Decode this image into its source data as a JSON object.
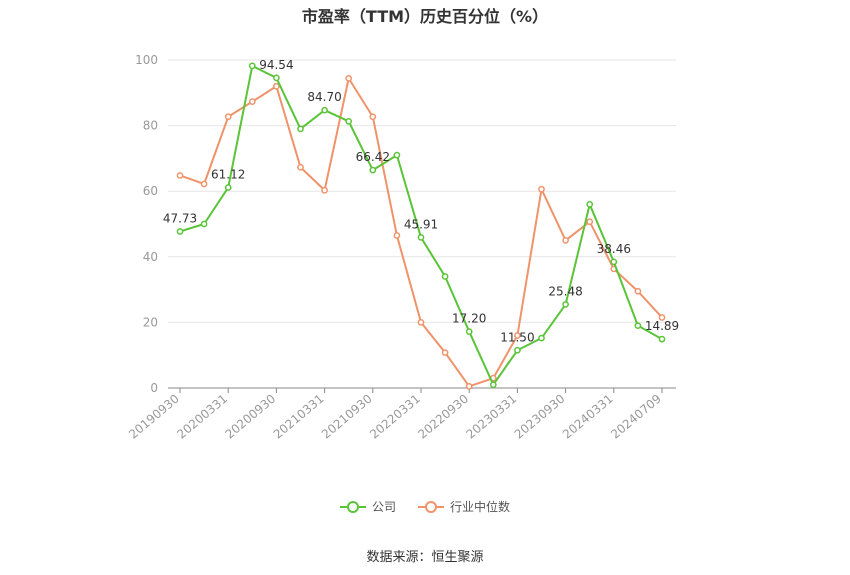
{
  "chart_data": {
    "type": "line",
    "title": "市盈率（TTM）历史百分位（%）",
    "ylim": [
      0,
      100
    ],
    "yticks": [
      0,
      20,
      40,
      60,
      80,
      100
    ],
    "x_tick_labels": [
      "20190930",
      "20200331",
      "20200930",
      "20210331",
      "20210930",
      "20220331",
      "20220930",
      "20230331",
      "20230930",
      "20240331",
      "20240709"
    ],
    "x": [
      "20190930",
      "20191231",
      "20200331",
      "20200630",
      "20200930",
      "20201231",
      "20210331",
      "20210630",
      "20210930",
      "20211231",
      "20220331",
      "20220630",
      "20220930",
      "20221231",
      "20230331",
      "20230630",
      "20230930",
      "20231231",
      "20240331",
      "20240630",
      "20240709"
    ],
    "series": [
      {
        "name": "公司",
        "color": "#5ac438",
        "values": [
          47.73,
          50.0,
          61.12,
          98.2,
          94.54,
          79.0,
          84.7,
          81.3,
          66.42,
          71.0,
          45.91,
          34.0,
          17.2,
          1.0,
          11.5,
          15.2,
          25.48,
          56.0,
          38.46,
          19.0,
          14.89
        ],
        "data_labels": [
          {
            "index": 0,
            "text": "47.73"
          },
          {
            "index": 2,
            "text": "61.12"
          },
          {
            "index": 4,
            "text": "94.54"
          },
          {
            "index": 6,
            "text": "84.70"
          },
          {
            "index": 8,
            "text": "66.42"
          },
          {
            "index": 10,
            "text": "45.91"
          },
          {
            "index": 12,
            "text": "17.20"
          },
          {
            "index": 14,
            "text": "11.50"
          },
          {
            "index": 16,
            "text": "25.48"
          },
          {
            "index": 18,
            "text": "38.46"
          },
          {
            "index": 20,
            "text": "14.89"
          }
        ]
      },
      {
        "name": "行业中位数",
        "color": "#f0926a",
        "values": [
          64.8,
          62.2,
          82.7,
          87.3,
          92.0,
          67.3,
          60.3,
          94.4,
          82.7,
          46.5,
          20.0,
          10.8,
          0.5,
          3.0,
          16.0,
          60.6,
          45.0,
          50.7,
          36.3,
          29.5,
          21.5
        ]
      }
    ],
    "grid": true,
    "legend_position": "bottom-center"
  },
  "source_text": "数据来源：恒生聚源"
}
